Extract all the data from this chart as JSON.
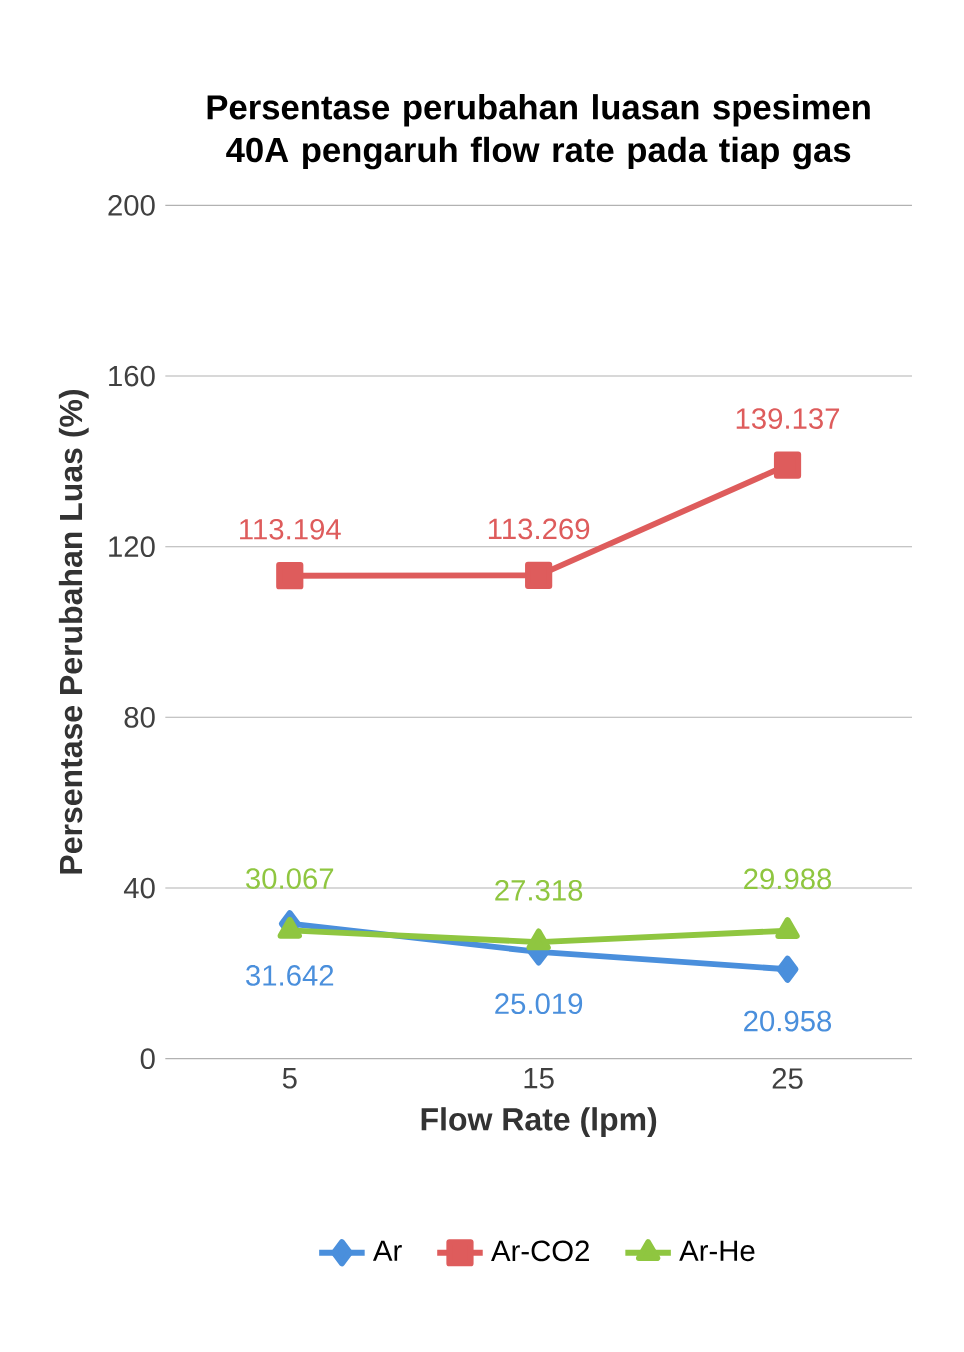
{
  "chart_data": {
    "type": "line",
    "title": "Persentase perubahan luasan spesimen 40A pengaruh flow rate pada tiap gas",
    "xlabel": "Flow Rate (lpm)",
    "ylabel": "Persentase Perubahan Luas (%)",
    "categories": [
      "5",
      "15",
      "25"
    ],
    "series": [
      {
        "name": "Ar",
        "color": "#4a8fdc",
        "values": [
          31.642,
          25.019,
          20.958
        ],
        "marker": "diamond"
      },
      {
        "name": "Ar-CO2",
        "color": "#de5c5c",
        "values": [
          113.194,
          113.269,
          139.137
        ],
        "marker": "square"
      },
      {
        "name": "Ar-He",
        "color": "#8fc640",
        "values": [
          30.067,
          27.318,
          29.988
        ],
        "marker": "triangle"
      }
    ],
    "ylim": [
      0,
      200
    ],
    "yticks": [
      0,
      40,
      80,
      120,
      160,
      200
    ],
    "grid": "y",
    "legend": "right",
    "data_labels": true
  }
}
